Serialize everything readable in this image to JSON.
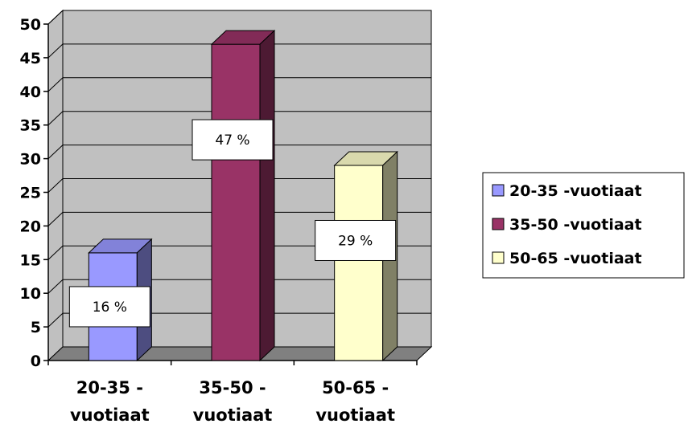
{
  "chart_data": {
    "type": "bar",
    "categories": [
      "20-35 -\nvuotiaat",
      "35-50 -\nvuotiaat",
      "50-65 -\nvuotiaat"
    ],
    "values": [
      16,
      47,
      29
    ],
    "data_labels": [
      "16 %",
      "47 %",
      "29 %"
    ],
    "series": [
      {
        "name": "20-35 -vuotiaat",
        "color": "#9999ff",
        "value": 16
      },
      {
        "name": "35-50 -vuotiaat",
        "color": "#993366",
        "value": 47
      },
      {
        "name": "50-65 -vuotiaat",
        "color": "#ffffcc",
        "value": 29
      }
    ],
    "ylim": [
      0,
      50
    ],
    "yticks": [
      "0",
      "5",
      "10",
      "15",
      "20",
      "25",
      "30",
      "35",
      "40",
      "45",
      "50"
    ],
    "title": "",
    "xlabel": "",
    "ylabel": "",
    "grid": true,
    "legend_position": "right",
    "style": "3d-column",
    "wall_color": "#c0c0c0",
    "floor_color": "#808080"
  }
}
